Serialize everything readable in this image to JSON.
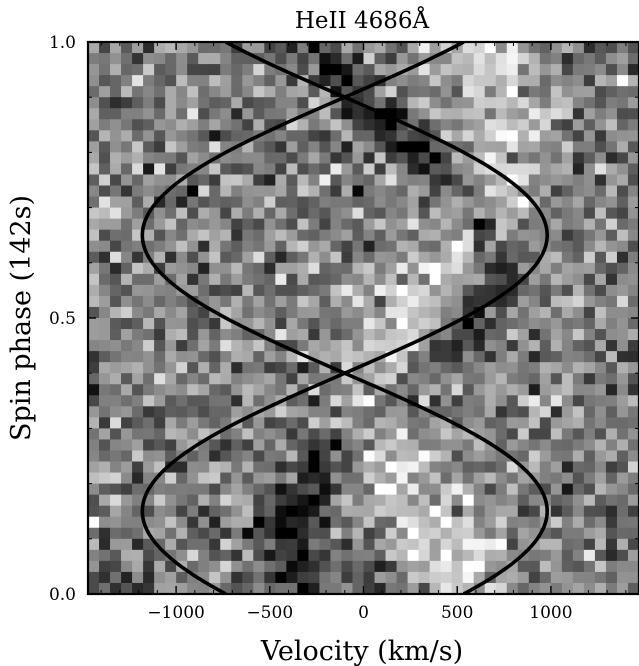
{
  "chart_data": {
    "type": "heatmap",
    "title": "HeII 4686Å",
    "xlabel": "Velocity (km/s)",
    "ylabel": "Spin phase (142s)",
    "xlim": [
      -1470,
      1470
    ],
    "ylim": [
      0.0,
      1.0
    ],
    "x_ticks": [
      {
        "value": -1000,
        "label": "−1000"
      },
      {
        "value": -500,
        "label": "−500"
      },
      {
        "value": 0,
        "label": "0"
      },
      {
        "value": 500,
        "label": "500"
      },
      {
        "value": 1000,
        "label": "1000"
      }
    ],
    "y_ticks": [
      {
        "value": 0.0,
        "label": "0.0"
      },
      {
        "value": 0.5,
        "label": "0.5"
      },
      {
        "value": 1.0,
        "label": "1.0"
      }
    ],
    "colormap": "grayscale",
    "grid": false,
    "series": [
      {
        "gamma": -100,
        "amplitude": 1080,
        "phase_of_max": 0.15
      },
      {
        "gamma": -100,
        "amplitude": 1080,
        "phase_of_max": 0.65
      }
    ]
  }
}
